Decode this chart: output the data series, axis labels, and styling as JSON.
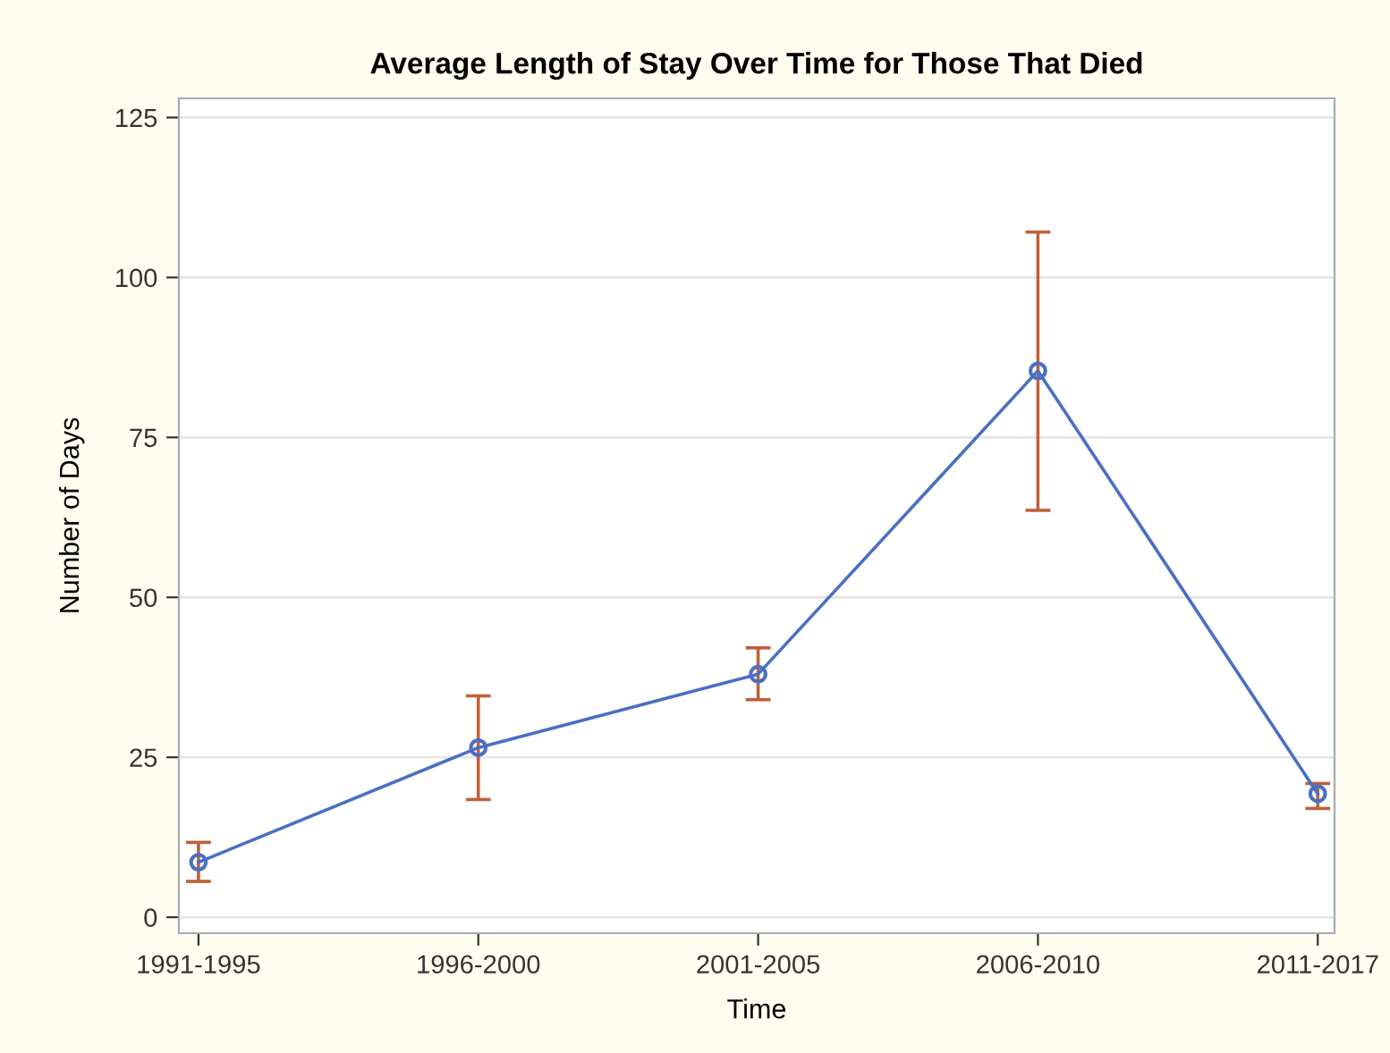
{
  "chart_data": {
    "type": "line",
    "title": "Average Length of Stay Over Time for Those That Died",
    "xlabel": "Time",
    "ylabel": "Number of Days",
    "categories": [
      "1991-1995",
      "1996-2000",
      "2001-2005",
      "2006-2010",
      "2011-2017"
    ],
    "series": [
      {
        "color": "#4a6fc4",
        "values": [
          8.6,
          26.5,
          38,
          85.4,
          19.3
        ],
        "errors": [
          [
            5.6,
            11.7
          ],
          [
            18.4,
            34.6
          ],
          [
            34,
            42.1
          ],
          [
            63.6,
            107.1
          ],
          [
            17.0,
            20.9
          ]
        ]
      }
    ],
    "ylim": [
      -2.5,
      128
    ],
    "yticks": [
      0,
      25,
      50,
      75,
      100,
      125
    ],
    "grid": "y",
    "marker": "circle",
    "line_style": "solid"
  }
}
